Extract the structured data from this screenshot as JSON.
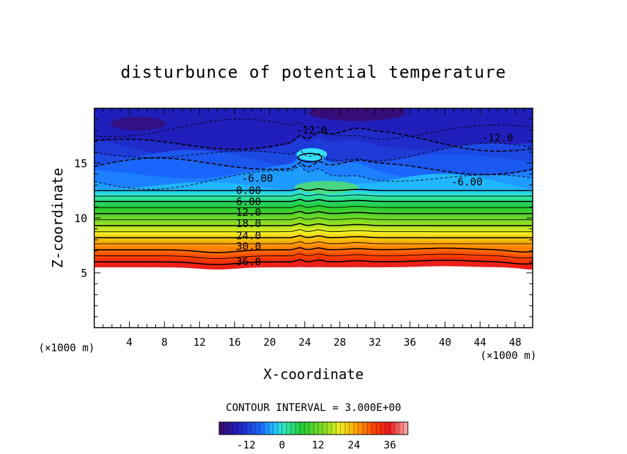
{
  "chart_data": {
    "type": "heatmap",
    "title": "disturbunce of potential temperature",
    "xlabel": "X-coordinate",
    "ylabel": "Z-coordinate",
    "x_unit": "(×1000 m)",
    "xlim": [
      0,
      50
    ],
    "ylim": [
      0,
      20
    ],
    "x_ticks": [
      4,
      8,
      12,
      16,
      20,
      24,
      28,
      32,
      36,
      40,
      44,
      48
    ],
    "y_ticks": [
      5,
      10,
      15
    ],
    "contour_interval_text": "CONTOUR INTERVAL = 3.000E+00",
    "colorbar": {
      "min": -21,
      "max": 42,
      "ticks": [
        -12,
        0,
        12,
        24,
        36
      ]
    },
    "contour_labels": [
      {
        "text": "36.0",
        "x": 17.6,
        "y": 6.0
      },
      {
        "text": "30.0",
        "x": 17.6,
        "y": 7.4
      },
      {
        "text": "24.0",
        "x": 17.6,
        "y": 8.4
      },
      {
        "text": "18.0",
        "x": 17.6,
        "y": 9.5
      },
      {
        "text": "12.0",
        "x": 17.6,
        "y": 10.5
      },
      {
        "text": "6.00",
        "x": 17.6,
        "y": 11.5
      },
      {
        "text": "0.00",
        "x": 17.6,
        "y": 12.5
      },
      {
        "text": "-6.00",
        "x": 18.6,
        "y": 13.6
      },
      {
        "text": "-6.00",
        "x": 42.5,
        "y": 13.3
      },
      {
        "text": "-12.0",
        "x": 24.8,
        "y": 18.0
      },
      {
        "text": "-12.0",
        "x": 46.0,
        "y": 17.3
      }
    ],
    "field_description_values": {
      "domain_bottom_z": 5.4,
      "isentrope_levels": [
        36,
        33,
        30,
        27,
        24,
        21,
        18,
        15,
        12,
        9,
        6,
        3,
        0,
        -3,
        -6,
        -9,
        -12,
        -15
      ]
    }
  }
}
